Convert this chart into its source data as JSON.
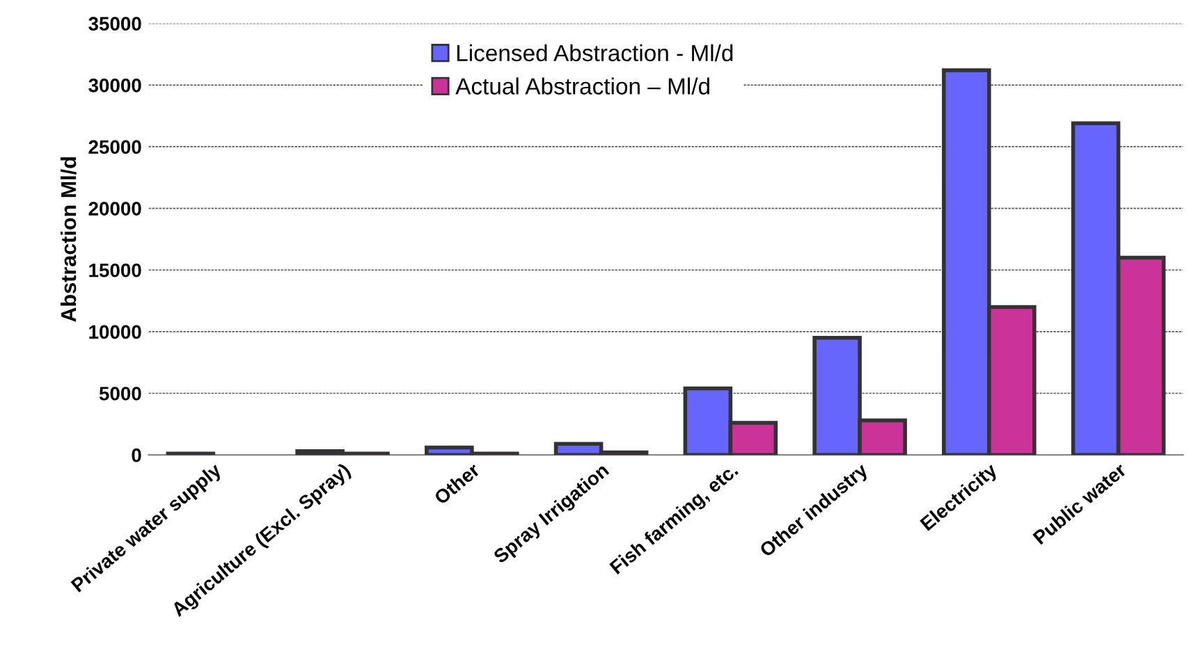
{
  "chart_data": {
    "type": "bar",
    "ylabel": "Abstraction Ml/d",
    "categories": [
      "Private water supply",
      "Agriculture (Excl. Spray)",
      "Other",
      "Spray Irrigation",
      "Fish farming, etc.",
      "Other industry",
      "Electricity",
      "Public water"
    ],
    "series": [
      {
        "name": "Licensed Abstraction - Ml/d",
        "color": "#6666ff",
        "values": [
          100,
          300,
          600,
          900,
          5400,
          9500,
          31200,
          26900
        ]
      },
      {
        "name": "Actual Abstraction – Ml/d",
        "color": "#cc3399",
        "values": [
          null,
          100,
          100,
          200,
          2600,
          2800,
          12000,
          16000
        ]
      }
    ],
    "ylim": [
      0,
      35000
    ],
    "yticks": [
      0,
      5000,
      10000,
      15000,
      20000,
      25000,
      30000,
      35000
    ],
    "grid": "y",
    "legend": "top"
  }
}
